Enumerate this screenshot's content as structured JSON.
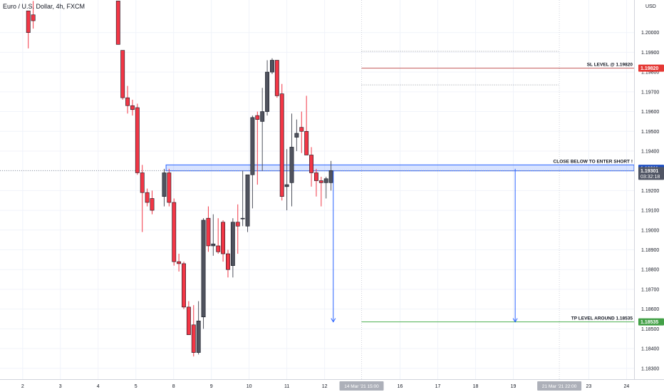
{
  "symbol_title": "Euro / U.S. Dollar, 4h, FXCM",
  "chart_data": {
    "type": "candlestick",
    "currency_label": "USD",
    "y_ticks": [
      1.2,
      1.199,
      1.198,
      1.197,
      1.196,
      1.195,
      1.194,
      1.193,
      1.192,
      1.191,
      1.19,
      1.189,
      1.188,
      1.187,
      1.186,
      1.185,
      1.184,
      1.183
    ],
    "ylim": [
      1.18245,
      1.20165
    ],
    "x_ticks": [
      {
        "label": "2",
        "x": 2
      },
      {
        "label": "3",
        "x": 3
      },
      {
        "label": "4",
        "x": 4
      },
      {
        "label": "5",
        "x": 5
      },
      {
        "label": "8",
        "x": 6
      },
      {
        "label": "9",
        "x": 7
      },
      {
        "label": "10",
        "x": 8
      },
      {
        "label": "11",
        "x": 9
      },
      {
        "label": "12",
        "x": 10
      },
      {
        "label": "16",
        "x": 12
      },
      {
        "label": "17",
        "x": 13
      },
      {
        "label": "18",
        "x": 14
      },
      {
        "label": "19",
        "x": 15
      },
      {
        "label": "23",
        "x": 17
      },
      {
        "label": "24",
        "x": 18
      }
    ],
    "x_highlights": [
      {
        "label": "14 Mar '21  15:00",
        "x": 10.98
      },
      {
        "label": "21 Mar '21  22:00",
        "x": 16.22
      }
    ],
    "xlim": [
      1.4,
      18.2
    ],
    "candles": [
      {
        "x": 2.15,
        "o": 1.2011,
        "h": 1.2011,
        "l": 1.1992,
        "c": 1.2
      },
      {
        "x": 2.28,
        "o": 1.2009,
        "h": 1.2016,
        "l": 1.2002,
        "c": 1.2006
      },
      {
        "x": 4.53,
        "o": 1.2016,
        "h": 1.2016,
        "l": 1.1994,
        "c": 1.1994
      },
      {
        "x": 4.65,
        "o": 1.1991,
        "h": 1.1991,
        "l": 1.1966,
        "c": 1.1967
      },
      {
        "x": 4.78,
        "o": 1.1967,
        "h": 1.1973,
        "l": 1.1959,
        "c": 1.1963
      },
      {
        "x": 4.91,
        "o": 1.1963,
        "h": 1.1966,
        "l": 1.1958,
        "c": 1.1961
      },
      {
        "x": 5.04,
        "o": 1.1962,
        "h": 1.1964,
        "l": 1.1928,
        "c": 1.1929
      },
      {
        "x": 5.17,
        "o": 1.1929,
        "h": 1.1933,
        "l": 1.1899,
        "c": 1.1919
      },
      {
        "x": 5.3,
        "o": 1.1919,
        "h": 1.1921,
        "l": 1.1912,
        "c": 1.1914
      },
      {
        "x": 5.43,
        "o": 1.1916,
        "h": 1.192,
        "l": 1.1908,
        "c": 1.191
      },
      {
        "x": 5.75,
        "o": 1.1917,
        "h": 1.1931,
        "l": 1.1912,
        "c": 1.1929
      },
      {
        "x": 5.88,
        "o": 1.1929,
        "h": 1.1931,
        "l": 1.1912,
        "c": 1.1914
      },
      {
        "x": 6.01,
        "o": 1.1914,
        "h": 1.1916,
        "l": 1.1882,
        "c": 1.1884
      },
      {
        "x": 6.14,
        "o": 1.1884,
        "h": 1.1888,
        "l": 1.1879,
        "c": 1.1883
      },
      {
        "x": 6.27,
        "o": 1.1883,
        "h": 1.1884,
        "l": 1.186,
        "c": 1.1861
      },
      {
        "x": 6.4,
        "o": 1.1861,
        "h": 1.1864,
        "l": 1.1847,
        "c": 1.1847
      },
      {
        "x": 6.53,
        "o": 1.1852,
        "h": 1.1862,
        "l": 1.1836,
        "c": 1.1838
      },
      {
        "x": 6.66,
        "o": 1.1838,
        "h": 1.1864,
        "l": 1.1837,
        "c": 1.1854
      },
      {
        "x": 6.79,
        "o": 1.1856,
        "h": 1.1906,
        "l": 1.185,
        "c": 1.1905
      },
      {
        "x": 6.92,
        "o": 1.1906,
        "h": 1.1912,
        "l": 1.1889,
        "c": 1.1892
      },
      {
        "x": 7.05,
        "o": 1.1892,
        "h": 1.1908,
        "l": 1.1887,
        "c": 1.1893
      },
      {
        "x": 7.18,
        "o": 1.1892,
        "h": 1.1906,
        "l": 1.1888,
        "c": 1.1889
      },
      {
        "x": 7.31,
        "o": 1.1904,
        "h": 1.1905,
        "l": 1.1884,
        "c": 1.1888
      },
      {
        "x": 7.44,
        "o": 1.1888,
        "h": 1.189,
        "l": 1.1876,
        "c": 1.188
      },
      {
        "x": 7.57,
        "o": 1.1882,
        "h": 1.1906,
        "l": 1.1876,
        "c": 1.1904
      },
      {
        "x": 7.7,
        "o": 1.1904,
        "h": 1.1913,
        "l": 1.1888,
        "c": 1.1902
      },
      {
        "x": 7.83,
        "o": 1.1906,
        "h": 1.193,
        "l": 1.1902,
        "c": 1.1906
      },
      {
        "x": 7.96,
        "o": 1.1902,
        "h": 1.1928,
        "l": 1.1899,
        "c": 1.1928
      },
      {
        "x": 8.09,
        "o": 1.1928,
        "h": 1.1958,
        "l": 1.1911,
        "c": 1.1957
      },
      {
        "x": 8.22,
        "o": 1.1958,
        "h": 1.196,
        "l": 1.1923,
        "c": 1.1956
      },
      {
        "x": 8.35,
        "o": 1.1955,
        "h": 1.1972,
        "l": 1.193,
        "c": 1.196
      },
      {
        "x": 8.48,
        "o": 1.196,
        "h": 1.1986,
        "l": 1.1958,
        "c": 1.198
      },
      {
        "x": 8.61,
        "o": 1.198,
        "h": 1.1987,
        "l": 1.1979,
        "c": 1.1986
      },
      {
        "x": 8.74,
        "o": 1.1986,
        "h": 1.1986,
        "l": 1.1967,
        "c": 1.1968
      },
      {
        "x": 8.87,
        "o": 1.1969,
        "h": 1.1974,
        "l": 1.1915,
        "c": 1.1917
      },
      {
        "x": 9.0,
        "o": 1.1922,
        "h": 1.1941,
        "l": 1.191,
        "c": 1.1923
      },
      {
        "x": 9.13,
        "o": 1.1924,
        "h": 1.1959,
        "l": 1.1912,
        "c": 1.1942
      },
      {
        "x": 9.26,
        "o": 1.1947,
        "h": 1.1956,
        "l": 1.194,
        "c": 1.1949
      },
      {
        "x": 9.39,
        "o": 1.1952,
        "h": 1.196,
        "l": 1.1939,
        "c": 1.195
      },
      {
        "x": 9.52,
        "o": 1.195,
        "h": 1.1968,
        "l": 1.1939,
        "c": 1.1938
      },
      {
        "x": 9.65,
        "o": 1.1938,
        "h": 1.1942,
        "l": 1.1922,
        "c": 1.1929
      },
      {
        "x": 9.78,
        "o": 1.1929,
        "h": 1.1931,
        "l": 1.1917,
        "c": 1.1925
      },
      {
        "x": 9.91,
        "o": 1.1925,
        "h": 1.1927,
        "l": 1.1912,
        "c": 1.1924
      },
      {
        "x": 10.04,
        "o": 1.1924,
        "h": 1.1927,
        "l": 1.1916,
        "c": 1.1926
      },
      {
        "x": 10.17,
        "o": 1.1924,
        "h": 1.1935,
        "l": 1.192,
        "c": 1.19301
      }
    ],
    "horizontal_lines": [
      {
        "y": 1.19905,
        "color": "#9598a1",
        "style": "dotted",
        "x_from": 10.98,
        "x_to": 16.2
      },
      {
        "y": 1.1982,
        "color": "#c2585a",
        "style": "solid",
        "x_from": 10.98,
        "x_to": 18.2,
        "label": "SL LEVEL @ 1.19820"
      },
      {
        "y": 1.19735,
        "color": "#9598a1",
        "style": "dotted",
        "x_from": 10.98,
        "x_to": 16.2
      },
      {
        "y": 1.19301,
        "color": "#9598a1",
        "style": "dotted",
        "x_from": 1.4,
        "x_to": 18.2
      },
      {
        "y": 1.18535,
        "color": "#4caf50",
        "style": "solid",
        "x_from": 10.98,
        "x_to": 18.2,
        "label": "TP LEVEL AROUND 1.18535"
      }
    ],
    "zone": {
      "y_low": 1.193,
      "y_high": 1.1933,
      "x_from": 5.8,
      "x_to": 18.2,
      "color": "#2962ff",
      "label": "CLOSE BELOW TO ENTER SHORT !"
    },
    "arrows": [
      {
        "x": 10.23,
        "y_from": 1.193,
        "y_to": 1.18535
      },
      {
        "x": 15.05,
        "y_from": 1.1931,
        "y_to": 1.18535
      }
    ],
    "price_badges": [
      {
        "value": "1.19820",
        "y": 1.1982,
        "color": "#e53935"
      },
      {
        "value": "1.19311",
        "y": 1.19313,
        "color": "#1e4fc2"
      },
      {
        "value": "1.19301",
        "sub": "03:32:18",
        "y": 1.19301,
        "color": "#505564"
      },
      {
        "value": "1.18535",
        "y": 1.18535,
        "color": "#43a047"
      }
    ],
    "colors": {
      "up": "#50535e",
      "down": "#f23645"
    }
  }
}
